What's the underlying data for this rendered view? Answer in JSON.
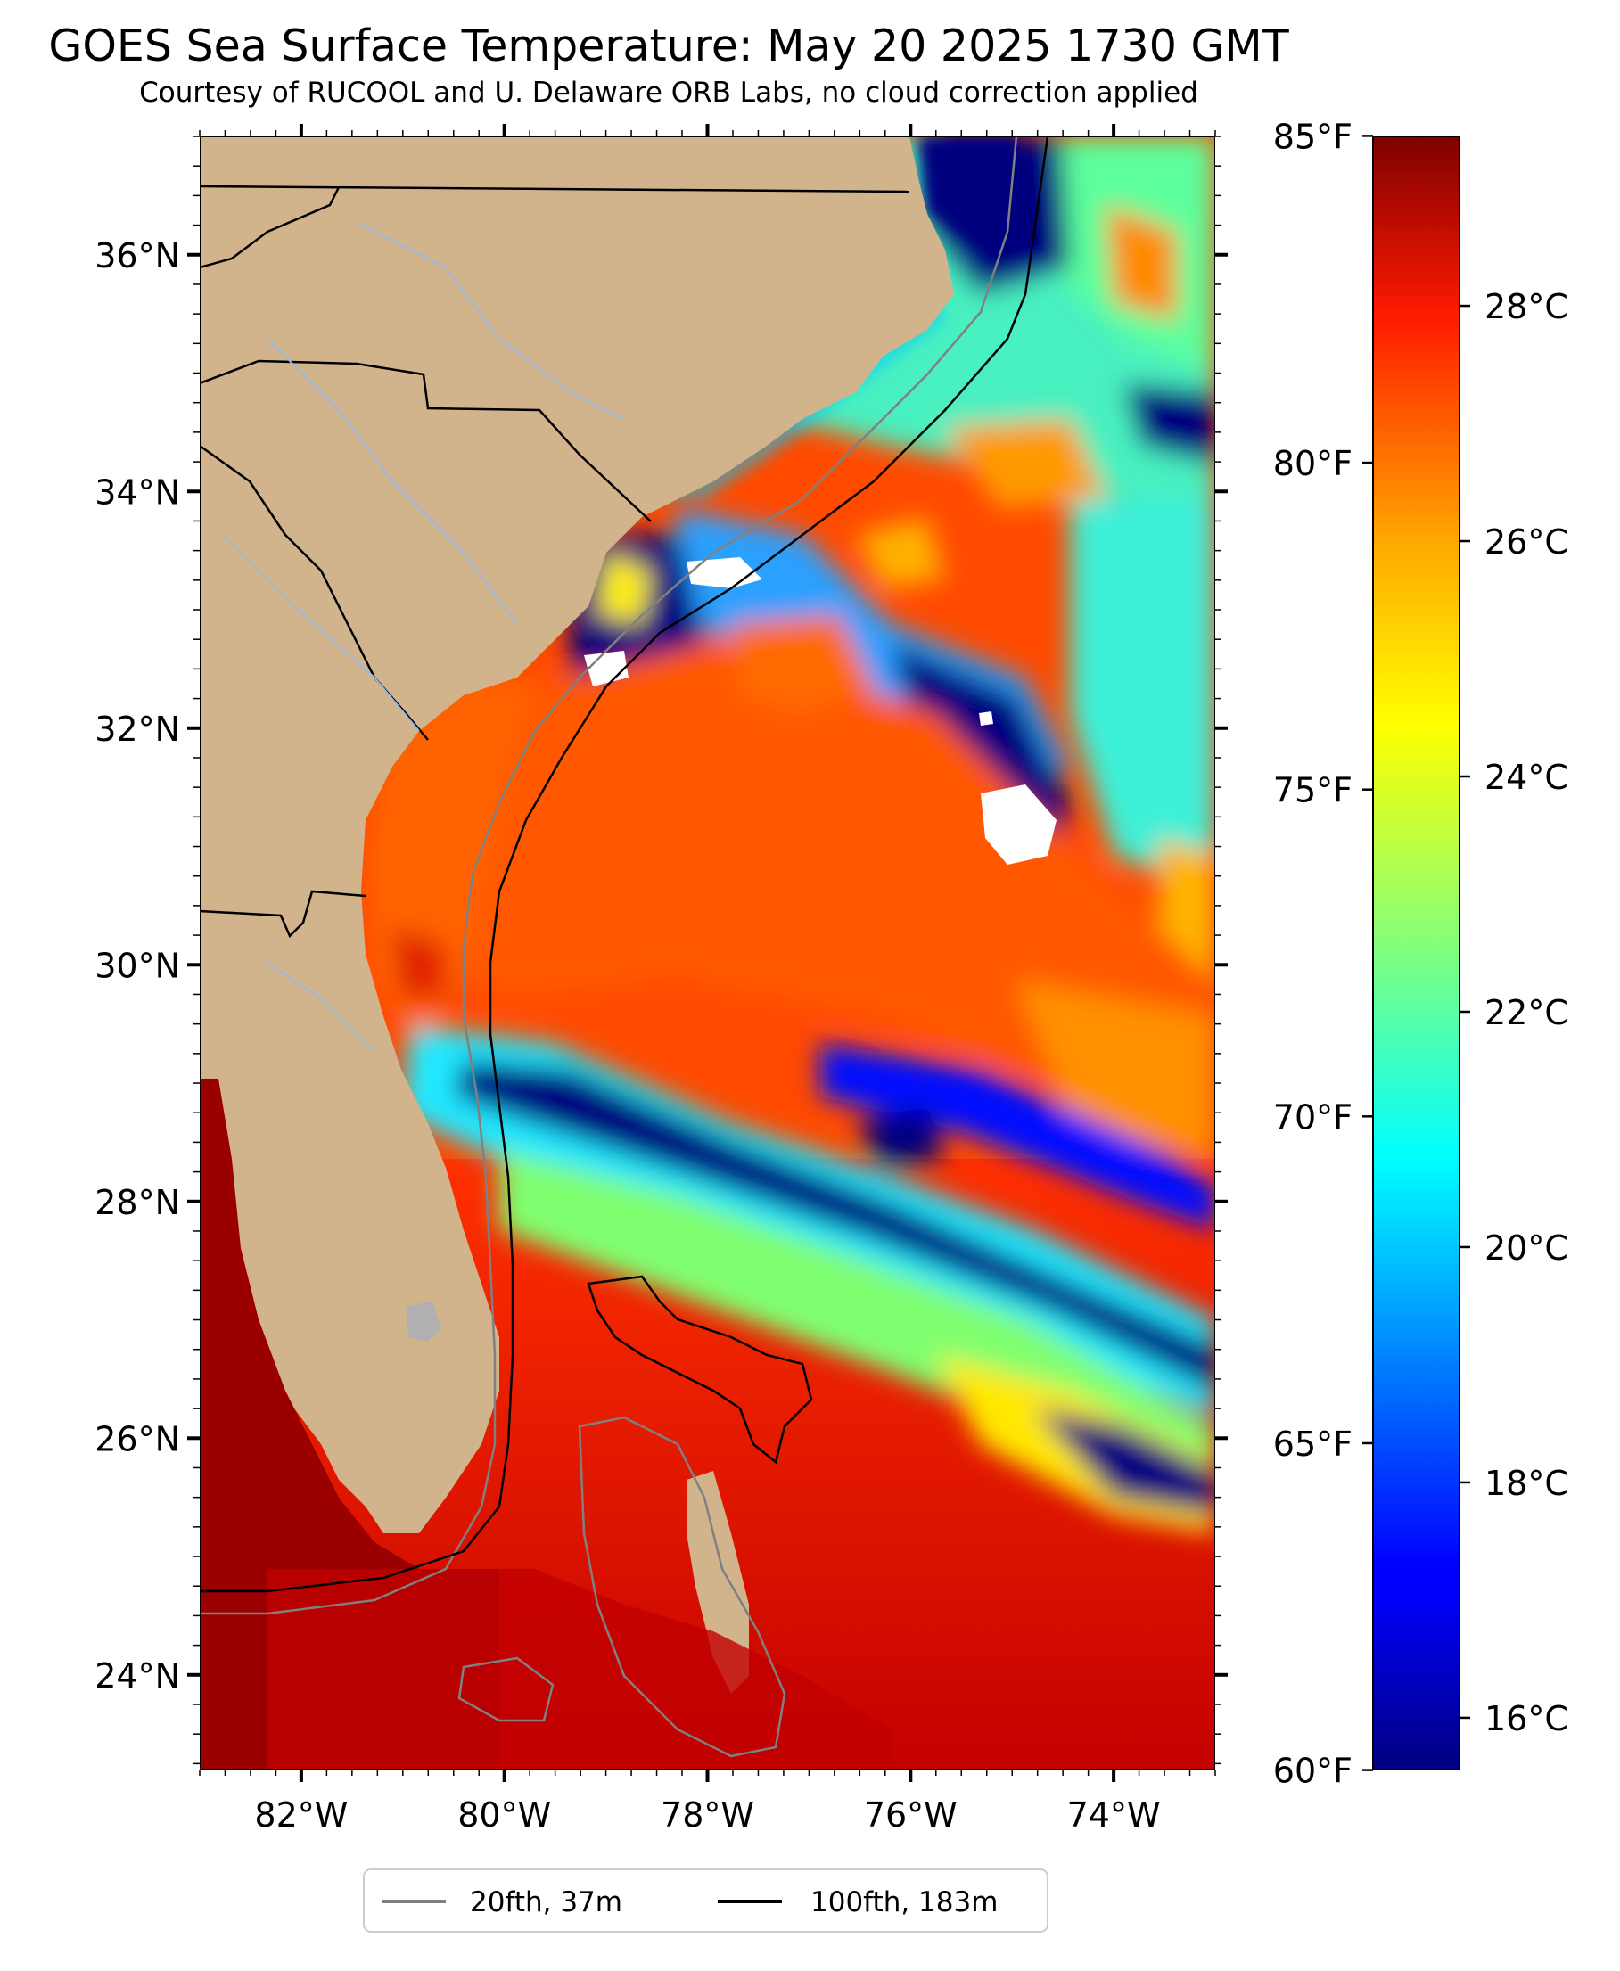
{
  "title": "GOES Sea Surface Temperature: May 20 2025 1730 GMT",
  "subtitle": "Courtesy of RUCOOL and U. Delaware ORB Labs, no cloud correction applied",
  "map": {
    "lon_range": [
      -83.0,
      -73.0
    ],
    "lat_range": [
      23.2,
      37.0
    ],
    "lon_ticks": [
      {
        "value": -82,
        "label": "82°W"
      },
      {
        "value": -80,
        "label": "80°W"
      },
      {
        "value": -78,
        "label": "78°W"
      },
      {
        "value": -76,
        "label": "76°W"
      },
      {
        "value": -74,
        "label": "74°W"
      }
    ],
    "lat_ticks": [
      {
        "value": 24,
        "label": "24°N"
      },
      {
        "value": 26,
        "label": "26°N"
      },
      {
        "value": 28,
        "label": "28°N"
      },
      {
        "value": 30,
        "label": "30°N"
      },
      {
        "value": 32,
        "label": "32°N"
      },
      {
        "value": 34,
        "label": "34°N"
      },
      {
        "value": 36,
        "label": "36°N"
      }
    ],
    "land_color": "#d2b48c",
    "cloud_color": "#ffffff"
  },
  "colorbar": {
    "colormap": "jet",
    "celsius_range": [
      15.56,
      29.44
    ],
    "fahrenheit_ticks": [
      {
        "value": 60,
        "label": "60°F"
      },
      {
        "value": 65,
        "label": "65°F"
      },
      {
        "value": 70,
        "label": "70°F"
      },
      {
        "value": 75,
        "label": "75°F"
      },
      {
        "value": 80,
        "label": "80°F"
      },
      {
        "value": 85,
        "label": "85°F"
      }
    ],
    "celsius_ticks": [
      {
        "value": 16,
        "label": "16°C"
      },
      {
        "value": 18,
        "label": "18°C"
      },
      {
        "value": 20,
        "label": "20°C"
      },
      {
        "value": 22,
        "label": "22°C"
      },
      {
        "value": 24,
        "label": "24°C"
      },
      {
        "value": 26,
        "label": "26°C"
      },
      {
        "value": 28,
        "label": "28°C"
      }
    ]
  },
  "legend": {
    "items": [
      {
        "label": "20fth, 37m",
        "color": "#808080"
      },
      {
        "label": "100fth, 183m",
        "color": "#000000"
      }
    ]
  }
}
